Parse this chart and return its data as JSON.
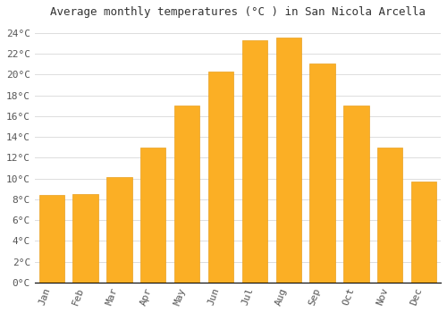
{
  "title": "Average monthly temperatures (°C ) in San Nicola Arcella",
  "months": [
    "Jan",
    "Feb",
    "Mar",
    "Apr",
    "May",
    "Jun",
    "Jul",
    "Aug",
    "Sep",
    "Oct",
    "Nov",
    "Dec"
  ],
  "temperatures": [
    8.4,
    8.5,
    10.1,
    13.0,
    17.0,
    20.3,
    23.3,
    23.6,
    21.1,
    17.0,
    13.0,
    9.7
  ],
  "bar_color": "#FBAF25",
  "bar_edge_color": "#E8A020",
  "background_color": "#FFFFFF",
  "grid_color": "#DDDDDD",
  "ylim": [
    0,
    25
  ],
  "yticks": [
    0,
    2,
    4,
    6,
    8,
    10,
    12,
    14,
    16,
    18,
    20,
    22,
    24
  ],
  "title_fontsize": 9,
  "tick_fontsize": 8,
  "tick_font_family": "monospace"
}
